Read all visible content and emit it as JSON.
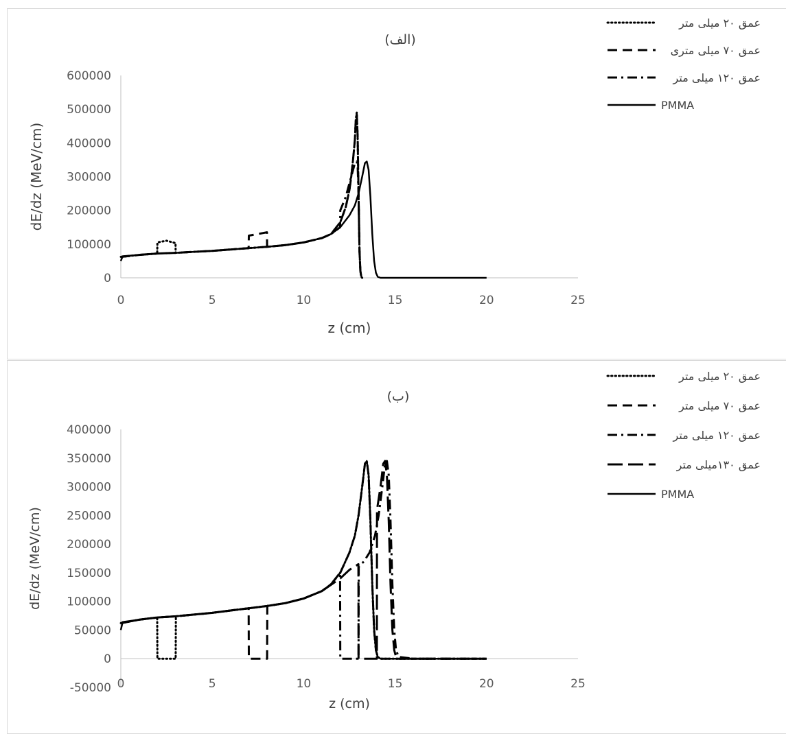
{
  "chart_data": [
    {
      "type": "line",
      "title": "(الف)",
      "xlabel": "z (cm)",
      "ylabel": "dE/dz (MeV/cm)",
      "xlim": [
        0,
        25
      ],
      "ylim": [
        0,
        600000
      ],
      "x_ticks": [
        "0",
        "5",
        "10",
        "15",
        "20",
        "25"
      ],
      "y_ticks": [
        "0",
        "100000",
        "200000",
        "300000",
        "400000",
        "500000",
        "600000"
      ],
      "grid": false,
      "legend_position": "top-right",
      "series": [
        {
          "name": "عمق ۲۰ میلی متر",
          "style": "dotted",
          "x": [
            0,
            0.5,
            1,
            1.5,
            1.99,
            2.0,
            2.5,
            2.99,
            3.0,
            4,
            5,
            6,
            7,
            8,
            9,
            10,
            11,
            11.5,
            12,
            12.3,
            12.5,
            12.6,
            12.7,
            12.8,
            12.85,
            12.9,
            12.95,
            13.0,
            13.05,
            13.1,
            13.15,
            13.2
          ],
          "values": [
            62000,
            65000,
            68000,
            70000,
            72000,
            105000,
            110000,
            103000,
            74000,
            77000,
            80000,
            84000,
            88000,
            92000,
            97000,
            105000,
            118000,
            130000,
            165000,
            210000,
            260000,
            300000,
            350000,
            410000,
            470000,
            490000,
            420000,
            250000,
            80000,
            20000,
            3000,
            0
          ]
        },
        {
          "name": "عمق ۷۰ میلی متری",
          "style": "dashed",
          "x": [
            0,
            1,
            2,
            3,
            4,
            5,
            6,
            6.99,
            7.0,
            7.5,
            7.99,
            8.0,
            9,
            10,
            11,
            11.5,
            12,
            12.3,
            12.5,
            12.6,
            12.7,
            12.8,
            12.85,
            12.9,
            12.95,
            13.0,
            13.05,
            13.1,
            13.15,
            13.2
          ],
          "values": [
            62000,
            68000,
            72000,
            74000,
            77000,
            80000,
            84000,
            88000,
            125000,
            130000,
            135000,
            92000,
            97000,
            105000,
            118000,
            130000,
            165000,
            210000,
            260000,
            300000,
            350000,
            410000,
            470000,
            485000,
            420000,
            250000,
            80000,
            20000,
            3000,
            0
          ]
        },
        {
          "name": "عمق ۱۲۰ میلی متر",
          "style": "dashdot",
          "x": [
            0,
            1,
            2,
            3,
            4,
            5,
            6,
            7,
            8,
            9,
            10,
            11,
            11.5,
            11.99,
            12.0,
            12.3,
            12.5,
            12.7,
            12.8,
            12.9,
            12.95,
            13.0,
            13.05,
            13.1,
            13.15,
            13.2
          ],
          "values": [
            62000,
            68000,
            72000,
            74000,
            77000,
            80000,
            84000,
            88000,
            92000,
            97000,
            105000,
            118000,
            130000,
            150000,
            200000,
            240000,
            280000,
            320000,
            340000,
            345000,
            330000,
            250000,
            80000,
            20000,
            3000,
            0
          ]
        },
        {
          "name": "PMMA",
          "style": "solid",
          "x": [
            0,
            0.1,
            1,
            2,
            3,
            4,
            5,
            6,
            7,
            8,
            9,
            10,
            11,
            11.5,
            12,
            12.5,
            12.8,
            13.0,
            13.2,
            13.35,
            13.45,
            13.55,
            13.65,
            13.75,
            13.85,
            13.95,
            14.05,
            14.2,
            15,
            20
          ],
          "values": [
            50000,
            64000,
            68000,
            72000,
            74000,
            77000,
            80000,
            84000,
            88000,
            92000,
            97000,
            105000,
            118000,
            130000,
            150000,
            185000,
            215000,
            250000,
            300000,
            340000,
            345000,
            320000,
            240000,
            130000,
            50000,
            15000,
            3000,
            0,
            0,
            0
          ]
        }
      ]
    },
    {
      "type": "line",
      "title": "(ب)",
      "xlabel": "z (cm)",
      "ylabel": "dE/dz (MeV/cm)",
      "xlim": [
        0,
        25
      ],
      "ylim": [
        -50000,
        400000
      ],
      "x_ticks": [
        "0",
        "5",
        "10",
        "15",
        "20",
        "25"
      ],
      "y_ticks": [
        "-50000",
        "0",
        "50000",
        "100000",
        "150000",
        "200000",
        "250000",
        "300000",
        "350000",
        "400000"
      ],
      "grid": false,
      "legend_position": "top-right",
      "series": [
        {
          "name": "عمق ۲۰ میلی متر",
          "style": "dotted",
          "x": [
            0,
            1,
            1.99,
            2.0,
            3.0,
            3.01,
            4,
            5,
            6,
            7,
            8,
            9,
            10,
            11,
            11.5,
            12,
            12.5,
            12.8,
            13.0,
            13.2,
            13.35,
            13.45,
            13.55,
            13.65,
            13.75,
            13.85,
            13.95,
            14.05,
            14.2,
            15,
            20
          ],
          "values": [
            62000,
            68000,
            72000,
            0,
            0,
            74000,
            77000,
            80000,
            84000,
            88000,
            92000,
            97000,
            105000,
            118000,
            130000,
            150000,
            185000,
            215000,
            250000,
            300000,
            340000,
            345000,
            320000,
            240000,
            130000,
            50000,
            15000,
            3000,
            0,
            0,
            0
          ]
        },
        {
          "name": "عمق ۷۰ میلی متر",
          "style": "dashed",
          "x": [
            0,
            1,
            2,
            3,
            4,
            5,
            6,
            6.99,
            7.0,
            8.0,
            8.01,
            9,
            10,
            11,
            11.5,
            12,
            12.5,
            12.8,
            13.0,
            13.2,
            13.35,
            13.45,
            13.55,
            13.65,
            13.75,
            13.85,
            13.95,
            14.05,
            14.2,
            15,
            20
          ],
          "values": [
            62000,
            68000,
            72000,
            74000,
            77000,
            80000,
            84000,
            88000,
            0,
            0,
            92000,
            97000,
            105000,
            118000,
            130000,
            150000,
            185000,
            215000,
            250000,
            300000,
            340000,
            345000,
            320000,
            240000,
            130000,
            50000,
            15000,
            3000,
            0,
            0,
            0
          ]
        },
        {
          "name": "عمق ۱۲۰ میلی متر",
          "style": "dashdot",
          "x": [
            0,
            1,
            2,
            3,
            4,
            5,
            6,
            7,
            8,
            9,
            10,
            11,
            11.5,
            11.99,
            12.0,
            13.0,
            13.01,
            13.3,
            13.6,
            13.9,
            14.1,
            14.3,
            14.45,
            14.55,
            14.65,
            14.75,
            14.85,
            14.95,
            15.05,
            15.2,
            16,
            20
          ],
          "values": [
            62000,
            68000,
            72000,
            74000,
            77000,
            80000,
            84000,
            88000,
            92000,
            97000,
            105000,
            118000,
            130000,
            150000,
            0,
            0,
            160000,
            170000,
            185000,
            215000,
            250000,
            300000,
            340000,
            345000,
            320000,
            240000,
            130000,
            50000,
            15000,
            3000,
            0,
            0
          ]
        },
        {
          "name": "عمق ۱۳۰میلی متر",
          "style": "longdash",
          "x": [
            0,
            1,
            2,
            3,
            4,
            5,
            6,
            7,
            8,
            9,
            10,
            11,
            12,
            12.5,
            12.99,
            13.0,
            14.0,
            14.01,
            14.2,
            14.35,
            14.45,
            14.55,
            14.65,
            14.75,
            14.85,
            14.95,
            15.05,
            15.2,
            16,
            20
          ],
          "values": [
            62000,
            68000,
            72000,
            74000,
            77000,
            80000,
            84000,
            88000,
            92000,
            97000,
            105000,
            118000,
            140000,
            155000,
            165000,
            0,
            0,
            260000,
            300000,
            340000,
            345000,
            320000,
            240000,
            130000,
            50000,
            15000,
            3000,
            0,
            0,
            0
          ]
        },
        {
          "name": "PMMA",
          "style": "solid",
          "x": [
            0,
            0.1,
            1,
            2,
            3,
            4,
            5,
            6,
            7,
            8,
            9,
            10,
            11,
            11.5,
            12,
            12.5,
            12.8,
            13.0,
            13.2,
            13.35,
            13.45,
            13.55,
            13.65,
            13.75,
            13.85,
            13.95,
            14.05,
            14.2,
            15,
            20
          ],
          "values": [
            50000,
            64000,
            68000,
            72000,
            74000,
            77000,
            80000,
            84000,
            88000,
            92000,
            97000,
            105000,
            118000,
            130000,
            150000,
            185000,
            215000,
            250000,
            300000,
            340000,
            345000,
            320000,
            240000,
            130000,
            50000,
            15000,
            3000,
            0,
            0,
            0
          ]
        }
      ]
    }
  ]
}
